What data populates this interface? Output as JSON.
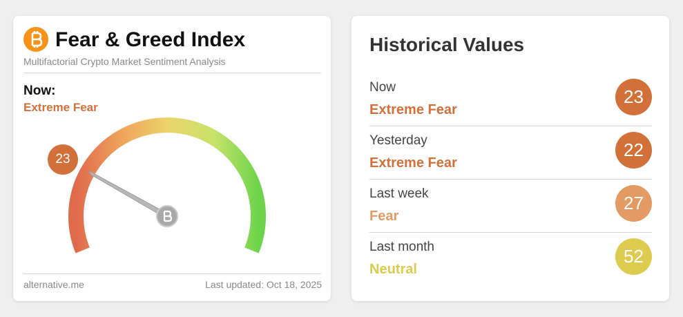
{
  "header": {
    "title": "Fear & Greed Index",
    "subtitle": "Multifactorial Crypto Market Sentiment Analysis"
  },
  "now": {
    "label": "Now:",
    "classification": "Extreme Fear",
    "value": 23,
    "color": "#d2703a"
  },
  "footer": {
    "source": "alternative.me",
    "updated": "Last updated: Oct 18, 2025"
  },
  "historical": {
    "title": "Historical Values",
    "rows": [
      {
        "label": "Now",
        "classification": "Extreme Fear",
        "value": 23,
        "color": "#d2703a"
      },
      {
        "label": "Yesterday",
        "classification": "Extreme Fear",
        "value": 22,
        "color": "#d2703a"
      },
      {
        "label": "Last week",
        "classification": "Fear",
        "value": 27,
        "color": "#e39a63"
      },
      {
        "label": "Last month",
        "classification": "Neutral",
        "value": 52,
        "color": "#dccb4e"
      }
    ]
  }
}
